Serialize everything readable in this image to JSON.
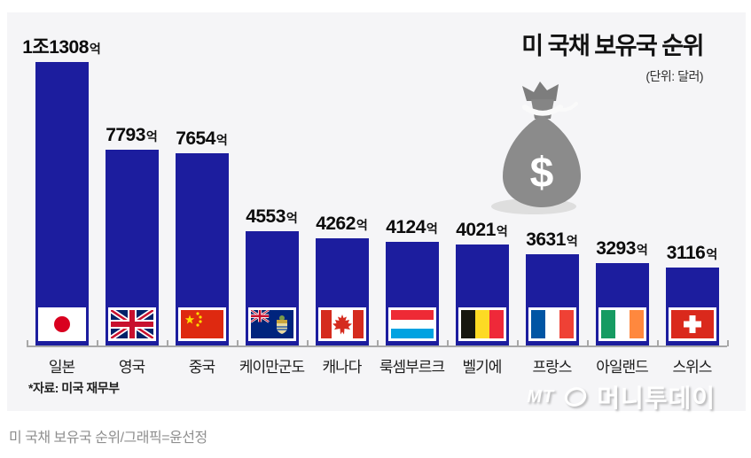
{
  "title": "미 국채 보유국 순위",
  "subtitle": "(단위: 달러)",
  "source_note": "*자료: 미국 재무부",
  "caption": "미 국채 보유국 순위/그래픽=윤선정",
  "watermark": {
    "mt": "MT",
    "name": "머니투데이"
  },
  "colors": {
    "bar": "#1c1d9e",
    "panel_bg": "#f5f5f7",
    "axis": "#a8a8a8",
    "value_text": "#0c0c0c",
    "caption_text": "#8f8f8f"
  },
  "icons": {
    "money_bag": "money-bag-icon",
    "publisher_logo": "moneytoday-logo-icon"
  },
  "chart_data": {
    "type": "bar",
    "title": "미 국채 보유국 순위",
    "unit_note": "(단위: 달러)",
    "categories": [
      "일본",
      "영국",
      "중국",
      "케이만군도",
      "캐나다",
      "룩셈부르크",
      "벨기에",
      "프랑스",
      "아일랜드",
      "스위스"
    ],
    "values": [
      11308,
      7793,
      7654,
      4553,
      4262,
      4124,
      4021,
      3631,
      3293,
      3116
    ],
    "value_labels": [
      "1조1308",
      "7793",
      "7654",
      "4553",
      "4262",
      "4124",
      "4021",
      "3631",
      "3293",
      "3116"
    ],
    "value_suffix": "억",
    "flags": [
      "japan",
      "uk",
      "china",
      "cayman-islands",
      "canada",
      "luxembourg",
      "belgium",
      "france",
      "ireland",
      "switzerland"
    ],
    "ylim": [
      0,
      11308
    ],
    "grid": false,
    "legend": "none",
    "orientation": "vertical"
  }
}
